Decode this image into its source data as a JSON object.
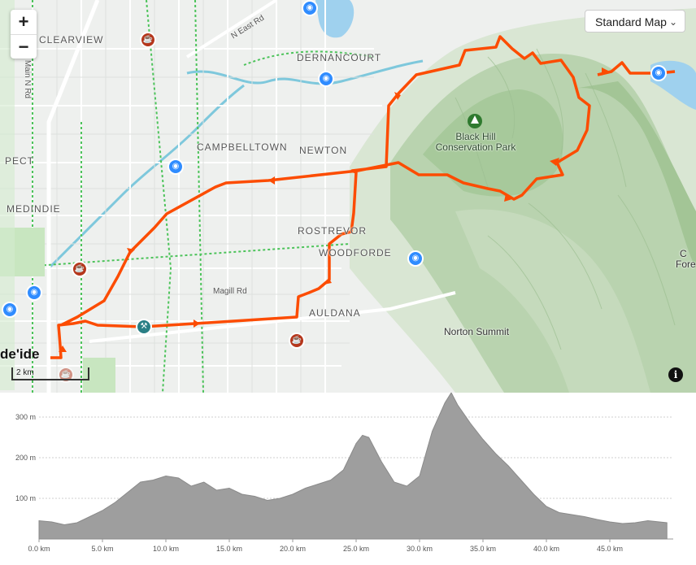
{
  "map": {
    "map_type_label": "Standard Map",
    "zoom_in_label": "+",
    "zoom_out_label": "−",
    "scale_label": "2 km",
    "info_label": "i",
    "logo_text": "de'ide",
    "places": [
      "CLEARVIEW",
      "DERNANCOURT",
      "CAMPBELLTOWN",
      "NEWTON",
      "MEDINDIE",
      "ROSTREVOR",
      "WOODFORDE",
      "AULDANA",
      "PECT"
    ],
    "streets": [
      "N East Rd",
      "Main N Rd",
      "Magill Rd"
    ],
    "park_name_line1": "Black Hill",
    "park_name_line2": "Conservation Park",
    "town": "Norton Summit",
    "edge_label_1": "C",
    "edge_label_2": "Fore",
    "route_color": "#fc4c02"
  },
  "elevation": {
    "y_ticks": [
      "300 m",
      "200 m",
      "100 m"
    ],
    "x_ticks": [
      "0.0 km",
      "5.0 km",
      "10.0 km",
      "15.0 km",
      "20.0 km",
      "25.0 km",
      "30.0 km",
      "35.0 km",
      "40.0 km",
      "45.0 km"
    ]
  },
  "chart_data": {
    "type": "area",
    "xlabel": "",
    "ylabel": "",
    "x_unit": "km",
    "y_unit": "m",
    "xlim": [
      0,
      50
    ],
    "ylim": [
      0,
      350
    ],
    "grid": true,
    "x": [
      0,
      1,
      2,
      3,
      4,
      5,
      6,
      7,
      8,
      9,
      10,
      11,
      12,
      13,
      14,
      15,
      16,
      17,
      18,
      19,
      20,
      21,
      22,
      23,
      24,
      25,
      25.5,
      26,
      27,
      28,
      29,
      30,
      31,
      32,
      32.5,
      33,
      34,
      35,
      36,
      37,
      38,
      39,
      40,
      41,
      42,
      43,
      44,
      45,
      46,
      47,
      48,
      49.5
    ],
    "values": [
      45,
      42,
      35,
      40,
      55,
      70,
      90,
      115,
      140,
      145,
      155,
      150,
      130,
      140,
      120,
      125,
      110,
      105,
      95,
      100,
      110,
      125,
      135,
      145,
      170,
      235,
      255,
      250,
      190,
      140,
      130,
      155,
      265,
      335,
      360,
      330,
      285,
      245,
      210,
      180,
      145,
      110,
      80,
      65,
      60,
      55,
      48,
      42,
      38,
      40,
      45,
      40
    ]
  }
}
